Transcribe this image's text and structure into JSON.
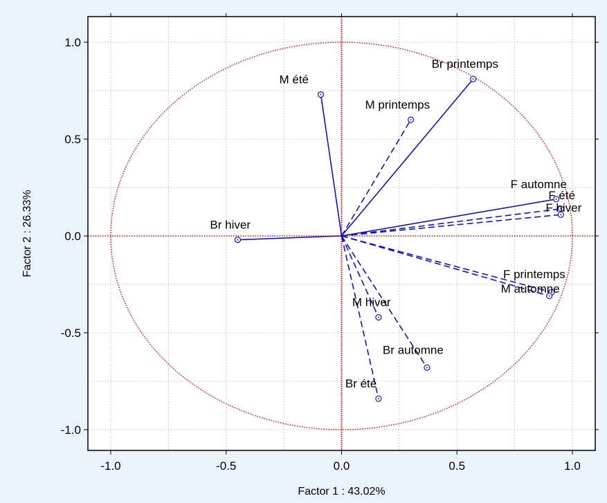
{
  "chart_data": {
    "type": "scatter",
    "subtype": "correlation-circle",
    "title": "",
    "xlabel": "Factor 1 : 43.02%",
    "ylabel": "Factor 2 : 26.33%",
    "xlim": [
      -1.0,
      1.0
    ],
    "ylim": [
      -1.0,
      1.0
    ],
    "x_ticks": [
      -1.0,
      -0.5,
      0.0,
      0.5,
      1.0
    ],
    "x_tick_labels": [
      "-1.0",
      "-0.5",
      "0.0",
      "0.5",
      "1.0"
    ],
    "y_ticks": [
      1.0,
      0.5,
      0.0,
      -0.5,
      -1.0
    ],
    "y_tick_labels": [
      "1.0",
      "0.5",
      "0.0",
      "-0.5",
      "-1.0"
    ],
    "grid": true,
    "unit_circle": true,
    "colors": {
      "vectors": "#1010d0",
      "circle": "#e01010",
      "grid": "#bdbdbd",
      "background": "#ffffff",
      "page": "#eaf2fb"
    },
    "points": [
      {
        "label": "Br printemps",
        "x": 0.57,
        "y": 0.81,
        "line": "solid"
      },
      {
        "label": "M été",
        "x": -0.09,
        "y": 0.73,
        "line": "solid"
      },
      {
        "label": "M printemps",
        "x": 0.3,
        "y": 0.6,
        "line": "dashed"
      },
      {
        "label": "F automne",
        "x": 0.93,
        "y": 0.19,
        "line": "solid"
      },
      {
        "label": "F été",
        "x": 0.95,
        "y": 0.14,
        "line": "dashed"
      },
      {
        "label": "F hiver",
        "x": 0.95,
        "y": 0.11,
        "line": "dashed"
      },
      {
        "label": "Br hiver",
        "x": -0.45,
        "y": -0.02,
        "line": "solid"
      },
      {
        "label": "F printemps",
        "x": 0.91,
        "y": -0.29,
        "line": "dashed"
      },
      {
        "label": "M automne",
        "x": 0.9,
        "y": -0.31,
        "line": "dashed"
      },
      {
        "label": "M hiver",
        "x": 0.16,
        "y": -0.42,
        "line": "dashed"
      },
      {
        "label": "Br automne",
        "x": 0.37,
        "y": -0.68,
        "line": "dashed"
      },
      {
        "label": "Br été",
        "x": 0.16,
        "y": -0.84,
        "line": "dashed"
      }
    ]
  }
}
